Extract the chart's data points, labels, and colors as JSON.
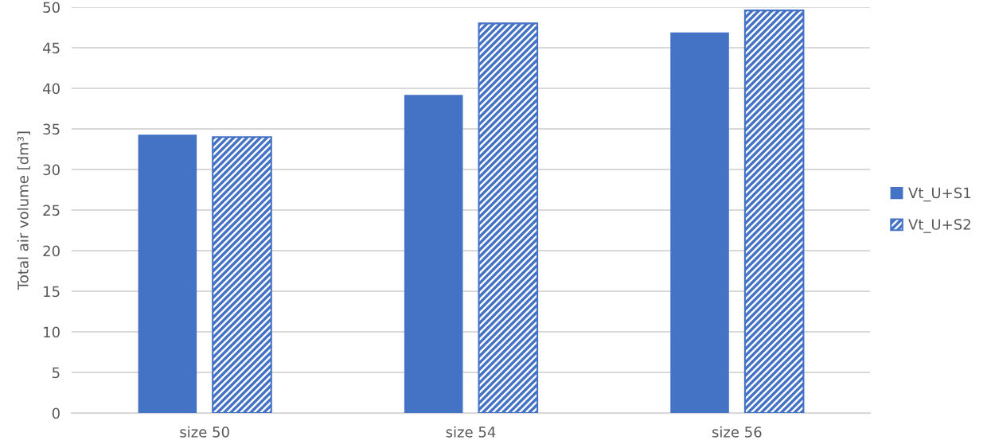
{
  "chart_data": {
    "type": "bar",
    "categories": [
      "size 50",
      "size 54",
      "size 56"
    ],
    "ylabel": "Total air volume [dm³]",
    "series": [
      {
        "name": "Vt_U+S1",
        "color": "#4472c4",
        "values": [
          34.3,
          39.2,
          46.9
        ]
      },
      {
        "name": "Vt_U+S2",
        "color": "#4472c4",
        "values": [
          34.0,
          48.0,
          49.6
        ]
      }
    ],
    "ylim": [
      0,
      50
    ],
    "yticks": [
      0,
      5,
      10,
      15,
      20,
      25,
      30,
      35,
      40,
      45,
      50
    ],
    "grid": "y",
    "legend": "right"
  }
}
